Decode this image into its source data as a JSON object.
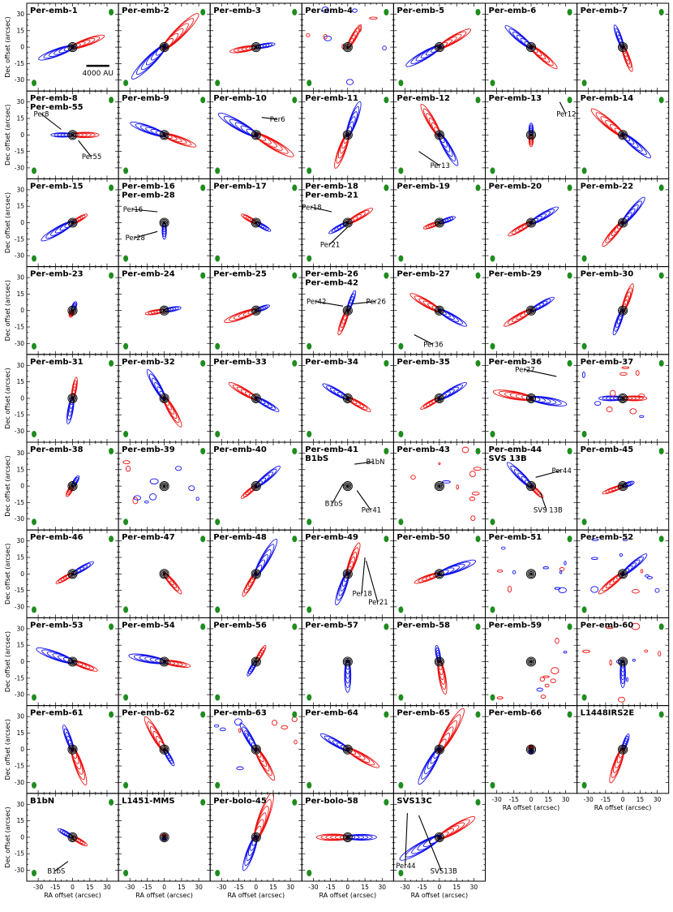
{
  "figure": {
    "x_axis_label": "RA offset (arcsec)",
    "y_axis_label": "Dec offset (arcsec)",
    "x_tick_labels": [
      "-30",
      "-15",
      "0",
      "15",
      "30"
    ],
    "y_tick_labels": [
      "30",
      "15",
      "0",
      "-15",
      "-30"
    ],
    "scale_bar_label": "4000 AU",
    "colors": {
      "blue": "#1010ee",
      "red": "#ee1010",
      "black": "#000000",
      "beam": "#1e8c1e"
    }
  },
  "chart_data": {
    "type": "contour-map-grid",
    "x_range_arcsec": [
      -40,
      40
    ],
    "y_range_arcsec": [
      -40,
      40
    ],
    "panels": [
      {
        "title": [
          "Per-emb-1"
        ],
        "redPA": 70,
        "blueLen": 30,
        "redLen": 28
      },
      {
        "title": [
          "Per-emb-2"
        ],
        "redPA": 45,
        "blueLen": 38,
        "redLen": 40
      },
      {
        "title": [
          "Per-emb-3"
        ],
        "redPA": 260,
        "blueLen": 16,
        "redLen": 22
      },
      {
        "title": [
          "Per-emb-4"
        ],
        "redPA": 30,
        "blueLen": 0,
        "redLen": 22,
        "scatter": true
      },
      {
        "title": [
          "Per-emb-5"
        ],
        "redPA": 60,
        "blueLen": 32,
        "redLen": 30
      },
      {
        "title": [
          "Per-emb-6"
        ],
        "redPA": 130,
        "blueLen": 28,
        "redLen": 28
      },
      {
        "title": [
          "Per-emb-7"
        ],
        "redPA": 160,
        "blueLen": 20,
        "redLen": 22
      },
      {
        "title": [
          "Per-emb-8",
          "Per-emb-55"
        ],
        "redPA": 90,
        "blueLen": 18,
        "redLen": 22,
        "ann": [
          {
            "t": "Per8",
            "x": -34,
            "y": 17,
            "px": -10,
            "py": 5
          },
          {
            "t": "Per55",
            "x": 8,
            "y": -22,
            "px": 5,
            "py": -5
          }
        ]
      },
      {
        "title": [
          "Per-emb-9"
        ],
        "redPA": 110,
        "blueLen": 30,
        "redLen": 28
      },
      {
        "title": [
          "Per-emb-10"
        ],
        "redPA": 120,
        "blueLen": 36,
        "redLen": 36,
        "ann": [
          {
            "t": "Per6",
            "x": 12,
            "y": 12,
            "px": 5,
            "py": 16
          }
        ]
      },
      {
        "title": [
          "Per-emb-11"
        ],
        "redPA": 200,
        "blueLen": 30,
        "redLen": 30
      },
      {
        "title": [
          "Per-emb-12"
        ],
        "redPA": 330,
        "blueLen": 30,
        "redLen": 30,
        "ann": [
          {
            "t": "Per13",
            "x": -8,
            "y": -30,
            "px": -18,
            "py": -15
          }
        ]
      },
      {
        "title": [
          "Per-emb-13"
        ],
        "redPA": 180,
        "blueLen": 10,
        "redLen": 10,
        "ann": [
          {
            "t": "Per12",
            "x": 22,
            "y": 17,
            "px": 25,
            "py": 30
          }
        ]
      },
      {
        "title": [
          "Per-emb-14"
        ],
        "redPA": 310,
        "blueLen": 30,
        "redLen": 34
      },
      {
        "title": [
          "Per-emb-15"
        ],
        "redPA": 60,
        "blueLen": 30,
        "redLen": 14
      },
      {
        "title": [
          "Per-emb-16",
          "Per-emb-28"
        ],
        "redPA": 0,
        "blueLen": 14,
        "redLen": 0,
        "ann": [
          {
            "t": "Per16",
            "x": -36,
            "y": 10,
            "px": -6,
            "py": 10
          },
          {
            "t": "Per28",
            "x": -34,
            "y": -16,
            "px": -6,
            "py": -8
          }
        ]
      },
      {
        "title": [
          "Per-emb-17"
        ],
        "redPA": 300,
        "blueLen": 14,
        "redLen": 14
      },
      {
        "title": [
          "Per-emb-18",
          "Per-emb-21"
        ],
        "redPA": 60,
        "blueLen": 18,
        "redLen": 24,
        "ann": [
          {
            "t": "Per18",
            "x": -40,
            "y": 12,
            "px": -14,
            "py": 10
          },
          {
            "t": "Per21",
            "x": -24,
            "y": -22,
            "px": 0,
            "py": -4
          }
        ]
      },
      {
        "title": [
          "Per-emb-19"
        ],
        "redPA": 250,
        "blueLen": 14,
        "redLen": 14
      },
      {
        "title": [
          "Per-emb-20"
        ],
        "redPA": 240,
        "blueLen": 26,
        "redLen": 22
      },
      {
        "title": [
          "Per-emb-22"
        ],
        "redPA": 220,
        "blueLen": 28,
        "redLen": 26
      },
      {
        "title": [
          "Per-emb-23"
        ],
        "redPA": 200,
        "blueLen": 8,
        "redLen": 6
      },
      {
        "title": [
          "Per-emb-24"
        ],
        "redPA": 260,
        "blueLen": 14,
        "redLen": 16
      },
      {
        "title": [
          "Per-emb-25"
        ],
        "redPA": 250,
        "blueLen": 12,
        "redLen": 28
      },
      {
        "title": [
          "Per-emb-26",
          "Per-emb-42"
        ],
        "redPA": 200,
        "blueLen": 18,
        "redLen": 22,
        "ann": [
          {
            "t": "Per42",
            "x": -36,
            "y": 6,
            "px": -4,
            "py": 4
          },
          {
            "t": "Per26",
            "x": 16,
            "y": 6,
            "px": 4,
            "py": 6
          }
        ]
      },
      {
        "title": [
          "Per-emb-27"
        ],
        "redPA": 300,
        "blueLen": 26,
        "redLen": 28,
        "ann": [
          {
            "t": "Per36",
            "x": -14,
            "y": -33,
            "px": -22,
            "py": -22
          }
        ]
      },
      {
        "title": [
          "Per-emb-29"
        ],
        "redPA": 240,
        "blueLen": 22,
        "redLen": 26
      },
      {
        "title": [
          "Per-emb-30"
        ],
        "redPA": 20,
        "blueLen": 22,
        "redLen": 24
      },
      {
        "title": [
          "Per-emb-31"
        ],
        "redPA": 10,
        "blueLen": 22,
        "redLen": 18
      },
      {
        "title": [
          "Per-emb-32"
        ],
        "redPA": 150,
        "blueLen": 28,
        "redLen": 28
      },
      {
        "title": [
          "Per-emb-33"
        ],
        "redPA": 300,
        "blueLen": 22,
        "redLen": 26
      },
      {
        "title": [
          "Per-emb-34"
        ],
        "redPA": 120,
        "blueLen": 24,
        "redLen": 22
      },
      {
        "title": [
          "Per-emb-35"
        ],
        "redPA": 240,
        "blueLen": 26,
        "redLen": 18
      },
      {
        "title": [
          "Per-emb-36"
        ],
        "redPA": 280,
        "blueLen": 30,
        "redLen": 32,
        "ann": [
          {
            "t": "Per27",
            "x": -14,
            "y": 24,
            "px": 22,
            "py": 20
          }
        ]
      },
      {
        "title": [
          "Per-emb-37"
        ],
        "redPA": 90,
        "blueLen": 20,
        "redLen": 20,
        "scatter": true
      },
      {
        "title": [
          "Per-emb-38"
        ],
        "redPA": 210,
        "blueLen": 10,
        "redLen": 10
      },
      {
        "title": [
          "Per-emb-39"
        ],
        "redPA": 0,
        "blueLen": 0,
        "redLen": 0,
        "scatter": true
      },
      {
        "title": [
          "Per-emb-40"
        ],
        "redPA": 230,
        "blueLen": 26,
        "redLen": 16
      },
      {
        "title": [
          "Per-emb-41",
          "B1bS"
        ],
        "redPA": 0,
        "blueLen": 0,
        "redLen": 0,
        "ann": [
          {
            "t": "B1bN",
            "x": 16,
            "y": 20,
            "px": 6,
            "py": 20
          },
          {
            "t": "B1bS",
            "x": -20,
            "y": -18,
            "px": -4,
            "py": 2
          },
          {
            "t": "Per41",
            "x": 12,
            "y": -24,
            "px": 8,
            "py": -4
          }
        ]
      },
      {
        "title": [
          "Per-emb-43"
        ],
        "redPA": 0,
        "blueLen": 0,
        "redLen": 0,
        "scatter": true
      },
      {
        "title": [
          "Per-emb-44",
          "SVS 13B"
        ],
        "redPA": 135,
        "blueLen": 28,
        "redLen": 14,
        "ann": [
          {
            "t": "Per44",
            "x": 18,
            "y": 12,
            "px": 4,
            "py": 8
          },
          {
            "t": "SVS 13B",
            "x": 2,
            "y": -24,
            "px": 8,
            "py": -6
          }
        ]
      },
      {
        "title": [
          "Per-emb-45"
        ],
        "redPA": 250,
        "blueLen": 10,
        "redLen": 18
      },
      {
        "title": [
          "Per-emb-46"
        ],
        "redPA": 240,
        "blueLen": 20,
        "redLen": 16
      },
      {
        "title": [
          "Per-emb-47"
        ],
        "redPA": 140,
        "blueLen": 0,
        "redLen": 22
      },
      {
        "title": [
          "Per-emb-48"
        ],
        "redPA": 210,
        "blueLen": 34,
        "redLen": 22
      },
      {
        "title": [
          "Per-emb-49"
        ],
        "redPA": 20,
        "blueLen": 28,
        "redLen": 28,
        "ann": [
          {
            "t": "Per18",
            "x": 4,
            "y": -20,
            "px": 15,
            "py": 15
          },
          {
            "t": "Per21",
            "x": 18,
            "y": -28,
            "px": 16,
            "py": 12
          }
        ]
      },
      {
        "title": [
          "Per-emb-50"
        ],
        "redPA": 250,
        "blueLen": 32,
        "redLen": 22
      },
      {
        "title": [
          "Per-emb-51"
        ],
        "redPA": 0,
        "blueLen": 0,
        "redLen": 0,
        "scatter": true
      },
      {
        "title": [
          "Per-emb-52"
        ],
        "redPA": 230,
        "blueLen": 26,
        "redLen": 26,
        "scatter": true
      },
      {
        "title": [
          "Per-emb-53"
        ],
        "redPA": 110,
        "blueLen": 32,
        "redLen": 22
      },
      {
        "title": [
          "Per-emb-54"
        ],
        "redPA": 100,
        "blueLen": 30,
        "redLen": 22
      },
      {
        "title": [
          "Per-emb-56"
        ],
        "redPA": 30,
        "blueLen": 14,
        "redLen": 16
      },
      {
        "title": [
          "Per-emb-57"
        ],
        "redPA": 0,
        "blueLen": 26,
        "redLen": 0
      },
      {
        "title": [
          "Per-emb-58"
        ],
        "redPA": 170,
        "blueLen": 14,
        "redLen": 28
      },
      {
        "title": [
          "Per-emb-59"
        ],
        "redPA": 0,
        "blueLen": 0,
        "redLen": 0,
        "scatter": true
      },
      {
        "title": [
          "Per-emb-60"
        ],
        "redPA": 0,
        "blueLen": 22,
        "redLen": 0,
        "scatter": true
      },
      {
        "title": [
          "Per-emb-61"
        ],
        "redPA": 160,
        "blueLen": 22,
        "redLen": 32
      },
      {
        "title": [
          "Per-emb-62"
        ],
        "redPA": 330,
        "blueLen": 16,
        "redLen": 32
      },
      {
        "title": [
          "Per-emb-63"
        ],
        "redPA": 150,
        "blueLen": 26,
        "redLen": 30,
        "scatter": true
      },
      {
        "title": [
          "Per-emb-64"
        ],
        "redPA": 120,
        "blueLen": 26,
        "redLen": 30
      },
      {
        "title": [
          "Per-emb-65"
        ],
        "redPA": 30,
        "blueLen": 34,
        "redLen": 40
      },
      {
        "title": [
          "Per-emb-66"
        ],
        "redPA": 0,
        "blueLen": 4,
        "redLen": 4
      },
      {
        "title": [
          "L1448IRS2E"
        ],
        "redPA": 200,
        "blueLen": 14,
        "redLen": 30
      },
      {
        "title": [
          "B1bN"
        ],
        "redPA": 120,
        "blueLen": 14,
        "redLen": 14,
        "ann": [
          {
            "t": "B1bS",
            "x": -22,
            "y": -33,
            "px": -4,
            "py": -22
          }
        ]
      },
      {
        "title": [
          "L1451-MMS"
        ],
        "redPA": 0,
        "blueLen": 3,
        "redLen": 3
      },
      {
        "title": [
          "Per-bolo-45"
        ],
        "redPA": 20,
        "blueLen": 30,
        "redLen": 40
      },
      {
        "title": [
          "Per-bolo-58"
        ],
        "redPA": 270,
        "blueLen": 24,
        "redLen": 26
      },
      {
        "title": [
          "SVS13C"
        ],
        "redPA": 60,
        "blueLen": 38,
        "redLen": 34,
        "ann": [
          {
            "t": "Per44",
            "x": -38,
            "y": -28,
            "px": -28,
            "py": 22
          },
          {
            "t": "SVS13B",
            "x": -8,
            "y": -33,
            "px": -18,
            "py": 20
          }
        ]
      }
    ]
  }
}
